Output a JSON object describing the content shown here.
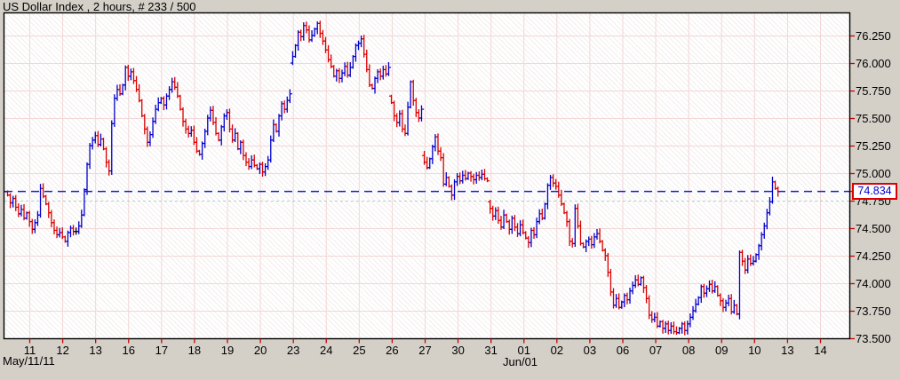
{
  "window": {
    "title": "US Dollar Index , 2 hours, # 233 / 500"
  },
  "chart_data": {
    "type": "ohlc-bar",
    "instrument": "US Dollar Index",
    "timeframe": "2 hours",
    "bar_counter": "# 233 / 500",
    "last_price": 74.834,
    "last_price_label": "74.834",
    "special_gridline_price": 74.75,
    "y_axis": {
      "min": 73.5,
      "max": 76.25,
      "step": 0.25,
      "ticks": [
        "76.250",
        "76.000",
        "75.750",
        "75.500",
        "75.250",
        "75.000",
        "74.750",
        "74.500",
        "74.250",
        "74.000",
        "73.750",
        "73.500"
      ]
    },
    "x_axis": {
      "day_labels": [
        "11",
        "12",
        "13",
        "16",
        "17",
        "18",
        "19",
        "20",
        "23",
        "24",
        "25",
        "26",
        "27",
        "30",
        "31",
        "01",
        "02",
        "03",
        "06",
        "07",
        "08",
        "09",
        "10",
        "13",
        "14"
      ],
      "start_date": "May/11/11",
      "month_label": "Jun/01",
      "month_label_day_index": 15
    },
    "series": {
      "bars_per_day": 12,
      "lead_in_bars": 8,
      "first_open": 74.83,
      "closes": [
        74.8,
        74.73,
        74.77,
        74.69,
        74.63,
        74.67,
        74.59,
        74.64,
        74.56,
        74.49,
        74.55,
        74.62,
        74.86,
        74.79,
        74.72,
        74.64,
        74.55,
        74.48,
        74.44,
        74.46,
        74.42,
        74.38,
        74.46,
        74.5,
        74.47,
        74.47,
        74.52,
        74.62,
        74.85,
        75.08,
        75.25,
        75.3,
        75.34,
        75.26,
        75.31,
        75.22,
        75.1,
        75.02,
        75.45,
        75.68,
        75.76,
        75.72,
        75.8,
        75.96,
        75.88,
        75.92,
        75.84,
        75.76,
        75.66,
        75.52,
        75.4,
        75.28,
        75.35,
        75.47,
        75.58,
        75.64,
        75.68,
        75.62,
        75.7,
        75.76,
        75.83,
        75.78,
        75.7,
        75.58,
        75.47,
        75.4,
        75.36,
        75.39,
        75.28,
        75.2,
        75.17,
        75.27,
        75.38,
        75.5,
        75.57,
        75.46,
        75.36,
        75.3,
        75.42,
        75.52,
        75.55,
        75.4,
        75.3,
        75.36,
        75.22,
        75.28,
        75.16,
        75.1,
        75.06,
        75.12,
        75.07,
        75.04,
        75.08,
        75.01,
        75.06,
        75.12,
        75.3,
        75.44,
        75.38,
        75.52,
        75.63,
        75.58,
        75.66,
        75.72,
        76.06,
        76.16,
        76.28,
        76.24,
        76.34,
        76.3,
        76.21,
        76.25,
        76.31,
        76.36,
        76.27,
        76.2,
        76.12,
        76.03,
        75.97,
        75.88,
        75.93,
        75.86,
        75.91,
        75.97,
        75.89,
        75.96,
        76.06,
        76.16,
        76.18,
        76.22,
        76.08,
        75.94,
        75.8,
        75.77,
        75.86,
        75.92,
        75.88,
        75.94,
        75.9,
        75.96,
        75.64,
        75.52,
        75.46,
        75.54,
        75.4,
        75.36,
        75.6,
        75.83,
        75.66,
        75.55,
        75.5,
        75.58,
        75.1,
        75.05,
        75.13,
        75.24,
        75.33,
        75.2,
        75.14,
        74.9,
        74.96,
        74.88,
        74.8,
        74.92,
        74.97,
        74.93,
        74.98,
        74.95,
        75.0,
        74.97,
        74.94,
        74.98,
        74.96,
        74.99,
        74.95,
        74.93,
        74.68,
        74.61,
        74.66,
        74.57,
        74.51,
        74.62,
        74.56,
        74.49,
        74.59,
        74.51,
        74.45,
        74.53,
        74.46,
        74.41,
        74.37,
        74.48,
        74.44,
        74.56,
        74.63,
        74.59,
        74.72,
        74.89,
        74.96,
        74.91,
        74.88,
        74.8,
        74.72,
        74.64,
        74.56,
        74.38,
        74.36,
        74.68,
        74.52,
        74.36,
        74.33,
        74.38,
        74.4,
        74.35,
        74.42,
        74.45,
        74.38,
        74.3,
        74.25,
        74.1,
        73.92,
        73.8,
        73.86,
        73.78,
        73.83,
        73.89,
        73.85,
        73.93,
        73.98,
        74.03,
        73.99,
        74.05,
        73.96,
        73.86,
        73.71,
        73.67,
        73.69,
        73.61,
        73.65,
        73.59,
        73.63,
        73.57,
        73.61,
        73.56,
        73.55,
        73.59,
        73.63,
        73.57,
        73.63,
        73.69,
        73.75,
        73.81,
        73.87,
        73.97,
        73.91,
        73.95,
        73.99,
        73.93,
        73.97,
        73.89,
        73.84,
        73.78,
        73.82,
        73.86,
        73.74,
        73.8,
        73.72,
        74.28,
        74.2,
        74.12,
        74.22,
        74.18,
        74.2,
        74.26,
        74.34,
        74.44,
        74.52,
        74.64,
        74.74,
        74.92,
        74.86,
        74.834
      ]
    },
    "colors": {
      "up": "#0000cd",
      "down": "#d90000",
      "unchanged": "#000000",
      "last_price_line": "#1122cc",
      "grid": "#f2d7d7",
      "grid_special": "#a8d4cb",
      "tick": "#cc0000",
      "border": "#000000",
      "price_box_border": "#dd0000",
      "price_box_text": "#0000cc"
    }
  }
}
